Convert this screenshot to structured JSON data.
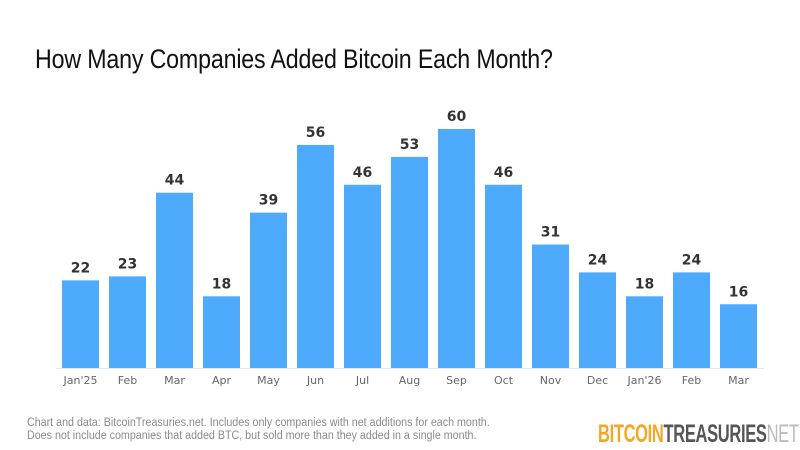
{
  "chart_data": {
    "type": "bar",
    "title": "How Many Companies Added Bitcoin Each Month?",
    "categories": [
      "Jan'25",
      "Feb",
      "Mar",
      "Apr",
      "May",
      "Jun",
      "Jul",
      "Aug",
      "Sep",
      "Oct",
      "Nov",
      "Dec",
      "Jan'26",
      "Feb",
      "Mar"
    ],
    "values": [
      22,
      23,
      44,
      18,
      39,
      56,
      46,
      53,
      60,
      46,
      31,
      24,
      18,
      24,
      16
    ],
    "xlabel": "",
    "ylabel": "",
    "ylim": [
      0,
      60
    ],
    "grid": false,
    "data_labels": true,
    "bar_color": "#4daafc"
  },
  "footnote": {
    "line1": "Chart and data: BitcoinTreasuries.net. Includes only companies with net additions for each month.",
    "line2": "Does not include companies that added BTC, but sold more than they added in a single month."
  },
  "logo": {
    "part1": "BITCOIN",
    "part2": "TREASURIES",
    "part3": "NET",
    "colors": {
      "part1": "#f5a623",
      "part2": "#555555",
      "part3": "#bbbbbb"
    }
  }
}
